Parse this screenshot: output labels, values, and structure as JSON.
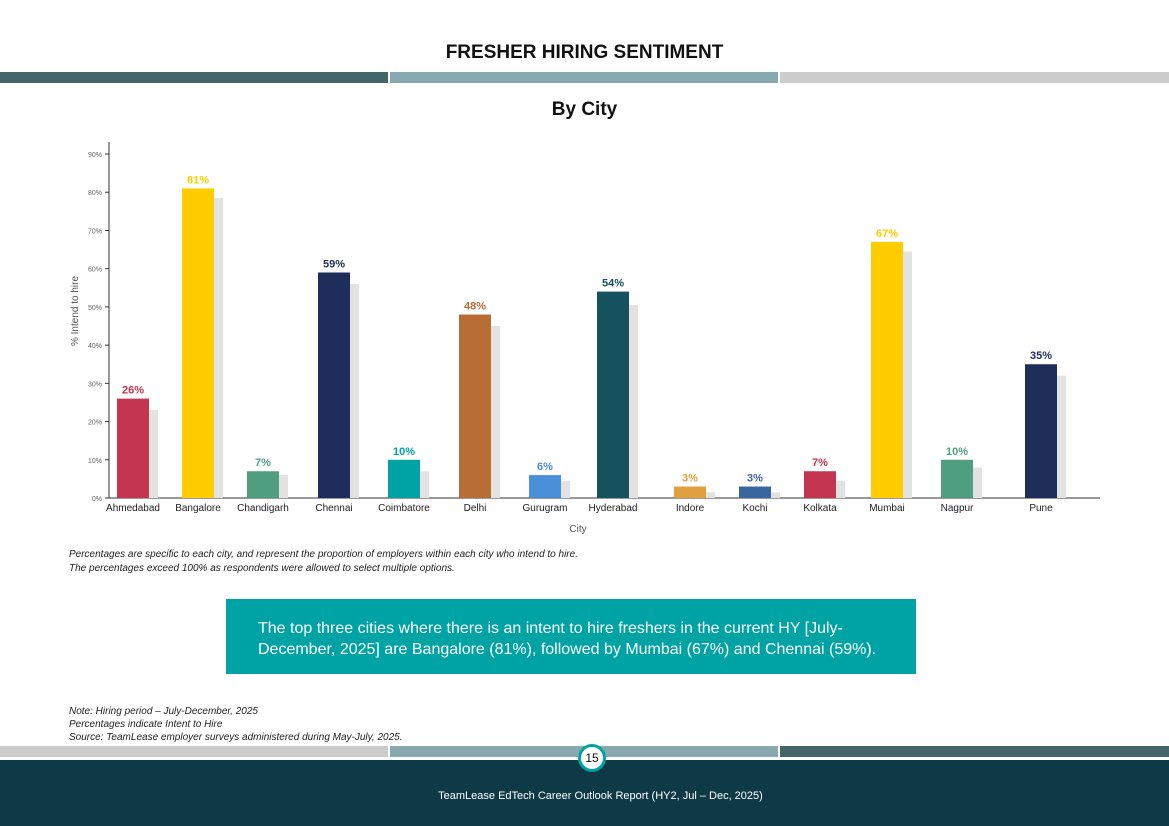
{
  "header": {
    "title": "FRESHER HIRING SENTIMENT"
  },
  "colors": {
    "band_dark": "#44666b",
    "band_mid": "#88a9b0",
    "band_light": "#cccccc",
    "footer": "#0e3a47",
    "callout": "#00a3a3",
    "shadow": "#e2e2e2"
  },
  "chart_data": {
    "type": "bar",
    "title": "By City",
    "xlabel": "City",
    "ylabel": "% Intend to hire",
    "ylim": [
      0,
      90
    ],
    "yticks": [
      "0%",
      "10%",
      "20%",
      "30%",
      "40%",
      "50%",
      "60%",
      "70%",
      "80%",
      "90%"
    ],
    "categories": [
      "Ahmedabad",
      "Bangalore",
      "Chandigarh",
      "Chennai",
      "Coimbatore",
      "Delhi",
      "Gurugram",
      "Hyderabad",
      "Indore",
      "Kochi",
      "Kolkata",
      "Mumbai",
      "Nagpur",
      "Pune"
    ],
    "series": [
      {
        "name": "Current HY",
        "values": [
          26,
          81,
          7,
          59,
          10,
          48,
          6,
          54,
          3,
          3,
          7,
          67,
          10,
          35
        ],
        "labels": [
          "26%",
          "81%",
          "7%",
          "59%",
          "10%",
          "48%",
          "6%",
          "54%",
          "3%",
          "3%",
          "7%",
          "67%",
          "10%",
          "35%"
        ],
        "colors": [
          "#c4354f",
          "#ffcc00",
          "#4f9e80",
          "#1f2d5a",
          "#00a3a3",
          "#b86d35",
          "#4a90d9",
          "#13525e",
          "#e0a040",
          "#3a66a0",
          "#c4354f",
          "#ffcc00",
          "#4f9e80",
          "#1f2d5a"
        ]
      },
      {
        "name": "Previous (shadow)",
        "values": [
          23,
          78.5,
          6,
          56,
          7,
          45,
          4.5,
          50.5,
          1.5,
          1.5,
          4.5,
          64.5,
          8,
          32
        ]
      }
    ],
    "grid": false
  },
  "notes": {
    "line1": "Percentages are specific to each city, and represent the proportion of employers within each city who intend to hire.",
    "line2": "The percentages exceed 100% as respondents were allowed to select multiple options."
  },
  "callout": "The top three cities where there is an intent to hire freshers in the current HY [July-December, 2025] are Bangalore (81%), followed by Mumbai (67%) and Chennai (59%).",
  "footnotes": {
    "line1": "Note: Hiring period – July-December, 2025",
    "line2": "Percentages indicate Intent to Hire",
    "line3": "Source:  TeamLease employer surveys administered during May-July, 2025."
  },
  "footer": {
    "page": "15",
    "text": "TeamLease EdTech Career Outlook Report (HY2, Jul – Dec, 2025)"
  }
}
